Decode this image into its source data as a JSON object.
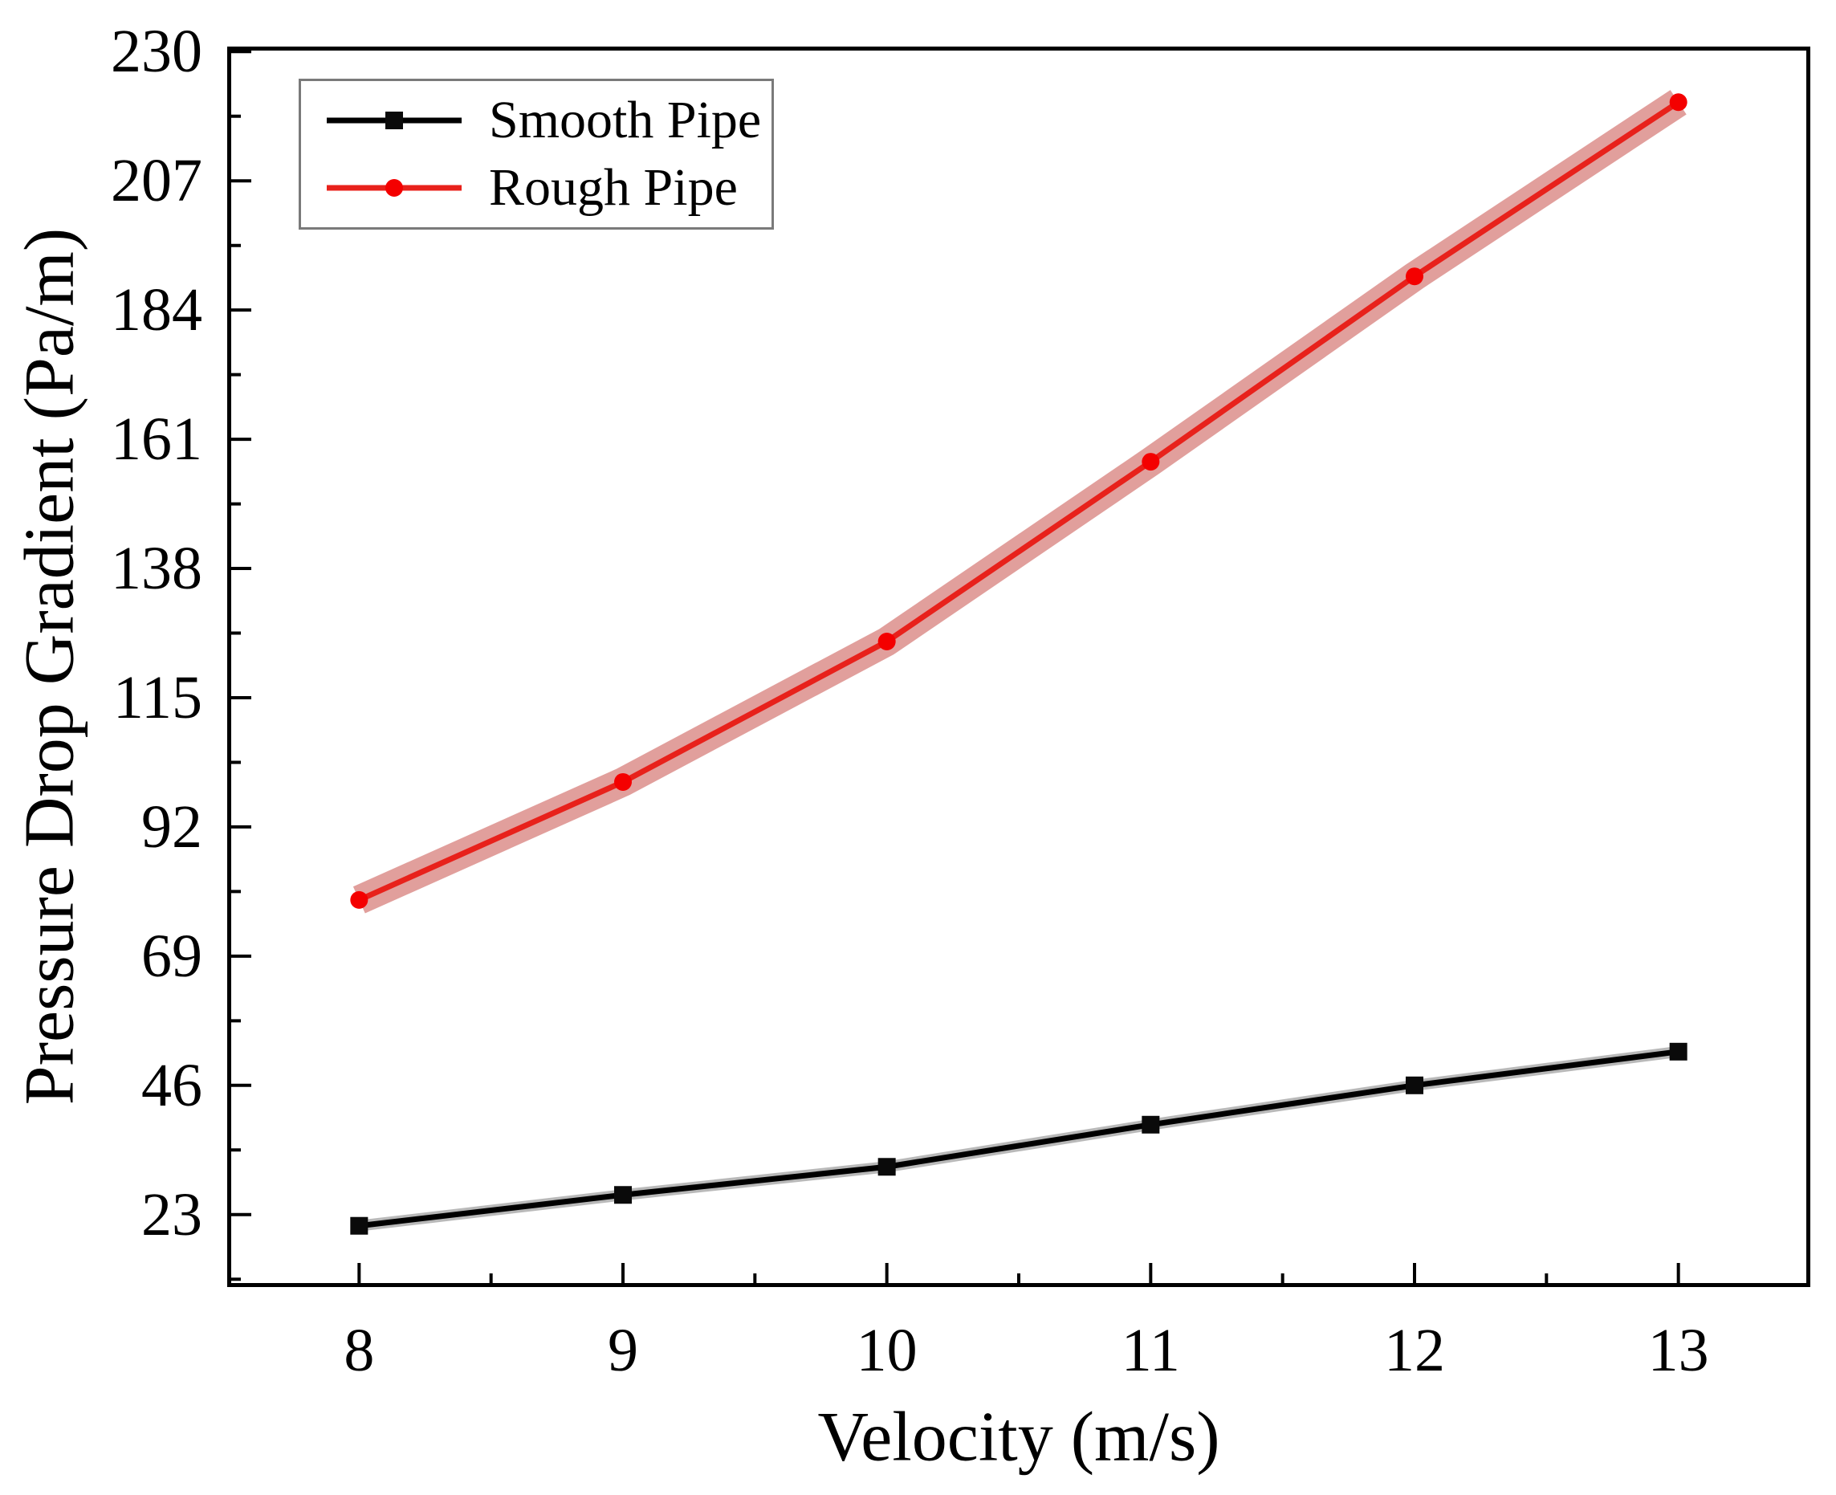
{
  "chart_data": {
    "type": "line",
    "title": "",
    "xlabel": "Velocity (m/s)",
    "ylabel": "Pressure Drop Gradient (Pa/m)",
    "x": [
      8,
      9,
      10,
      11,
      12,
      13
    ],
    "xticks": [
      8,
      9,
      10,
      11,
      12,
      13
    ],
    "yticks": [
      23,
      46,
      69,
      92,
      115,
      138,
      161,
      184,
      207,
      230
    ],
    "xlim": [
      7.5,
      13.5
    ],
    "ylim": [
      10.1,
      230.9
    ],
    "grid": false,
    "legend_position": "upper-left",
    "series": [
      {
        "name": "Smooth Pipe",
        "marker": "square",
        "color": "#000000",
        "marker_color": "#0a0a0a",
        "band_color": "rgba(128,128,128,0.55)",
        "band_halfwidth": 1.0,
        "values": [
          21,
          26.5,
          31.5,
          39,
          46,
          52
        ]
      },
      {
        "name": "Rough Pipe",
        "marker": "circle",
        "color": "#e8211b",
        "marker_color": "#f40000",
        "band_color": "rgba(205,95,90,0.6)",
        "band_halfwidth": 2.6,
        "values": [
          79,
          100,
          125,
          157,
          190,
          221
        ]
      }
    ],
    "frame_color": "#000000",
    "legend_border_color": "#7a7a7a"
  }
}
